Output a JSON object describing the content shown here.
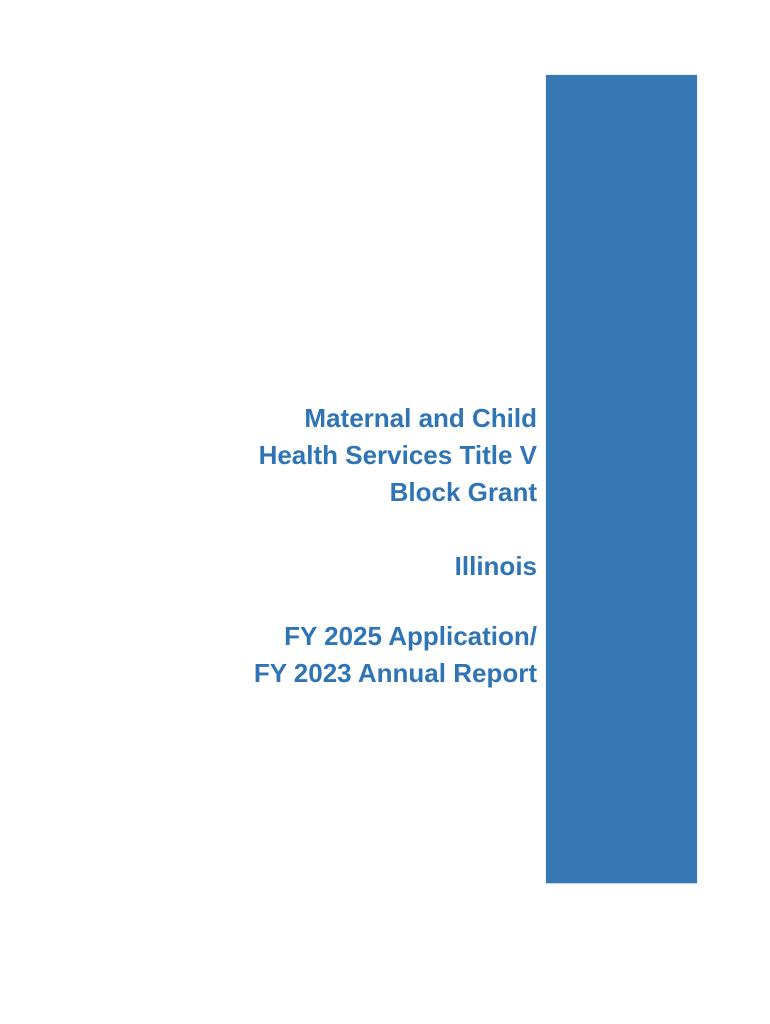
{
  "colors": {
    "page_background": "#FFFFFF",
    "accent_bar": "#3578B4",
    "title_text": "#2F75B6"
  },
  "cover": {
    "program_title": "Maternal and Child\nHealth Services Title V\nBlock Grant",
    "state_name": "Illinois",
    "report_period": "FY 2025 Application/\nFY 2023 Annual Report"
  }
}
